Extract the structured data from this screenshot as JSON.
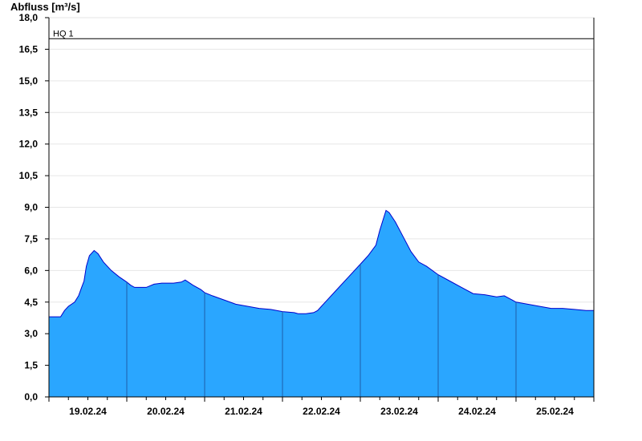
{
  "chart_data": {
    "type": "area",
    "title": "",
    "ylabel": "Abfluss [m³/s]",
    "xlabel": "",
    "ylim": [
      0,
      18
    ],
    "xlim": [
      0,
      7
    ],
    "y_ticks": [
      "0,0",
      "1,5",
      "3,0",
      "4,5",
      "6,0",
      "7,5",
      "9,0",
      "10,5",
      "12,0",
      "13,5",
      "15,0",
      "16,5",
      "18,0"
    ],
    "x_tick_labels": [
      "19.02.24",
      "20.02.24",
      "21.02.24",
      "22.02.24",
      "23.02.24",
      "24.02.24",
      "25.02.24"
    ],
    "grid": true,
    "fill_color": "#2aa6ff",
    "line_color": "#0000cc",
    "reference_lines": [
      {
        "label": "HQ 1",
        "value": 17.0
      }
    ],
    "series": [
      {
        "points": [
          [
            0.0,
            3.8
          ],
          [
            0.15,
            3.8
          ],
          [
            0.2,
            4.1
          ],
          [
            0.25,
            4.3
          ],
          [
            0.33,
            4.5
          ],
          [
            0.38,
            4.8
          ],
          [
            0.42,
            5.2
          ],
          [
            0.45,
            5.5
          ],
          [
            0.48,
            6.2
          ],
          [
            0.52,
            6.7
          ],
          [
            0.58,
            6.95
          ],
          [
            0.63,
            6.8
          ],
          [
            0.7,
            6.4
          ],
          [
            0.8,
            6.0
          ],
          [
            0.9,
            5.7
          ],
          [
            1.0,
            5.45
          ],
          [
            1.05,
            5.3
          ],
          [
            1.1,
            5.2
          ],
          [
            1.25,
            5.2
          ],
          [
            1.35,
            5.35
          ],
          [
            1.45,
            5.4
          ],
          [
            1.6,
            5.4
          ],
          [
            1.7,
            5.45
          ],
          [
            1.75,
            5.55
          ],
          [
            1.85,
            5.3
          ],
          [
            1.95,
            5.1
          ],
          [
            2.0,
            4.95
          ],
          [
            2.1,
            4.8
          ],
          [
            2.25,
            4.6
          ],
          [
            2.4,
            4.4
          ],
          [
            2.55,
            4.3
          ],
          [
            2.7,
            4.2
          ],
          [
            2.85,
            4.15
          ],
          [
            3.0,
            4.05
          ],
          [
            3.15,
            4.0
          ],
          [
            3.2,
            3.95
          ],
          [
            3.3,
            3.95
          ],
          [
            3.4,
            4.0
          ],
          [
            3.45,
            4.1
          ],
          [
            3.55,
            4.5
          ],
          [
            3.7,
            5.1
          ],
          [
            3.85,
            5.7
          ],
          [
            4.0,
            6.3
          ],
          [
            4.1,
            6.7
          ],
          [
            4.2,
            7.2
          ],
          [
            4.25,
            7.9
          ],
          [
            4.3,
            8.5
          ],
          [
            4.33,
            8.85
          ],
          [
            4.37,
            8.75
          ],
          [
            4.45,
            8.3
          ],
          [
            4.55,
            7.6
          ],
          [
            4.65,
            6.9
          ],
          [
            4.75,
            6.4
          ],
          [
            4.85,
            6.2
          ],
          [
            5.0,
            5.8
          ],
          [
            5.15,
            5.5
          ],
          [
            5.3,
            5.2
          ],
          [
            5.45,
            4.9
          ],
          [
            5.6,
            4.85
          ],
          [
            5.75,
            4.75
          ],
          [
            5.85,
            4.8
          ],
          [
            5.95,
            4.6
          ],
          [
            6.0,
            4.5
          ],
          [
            6.15,
            4.4
          ],
          [
            6.3,
            4.3
          ],
          [
            6.45,
            4.2
          ],
          [
            6.6,
            4.2
          ],
          [
            6.75,
            4.15
          ],
          [
            6.9,
            4.1
          ],
          [
            7.0,
            4.1
          ]
        ]
      }
    ]
  }
}
